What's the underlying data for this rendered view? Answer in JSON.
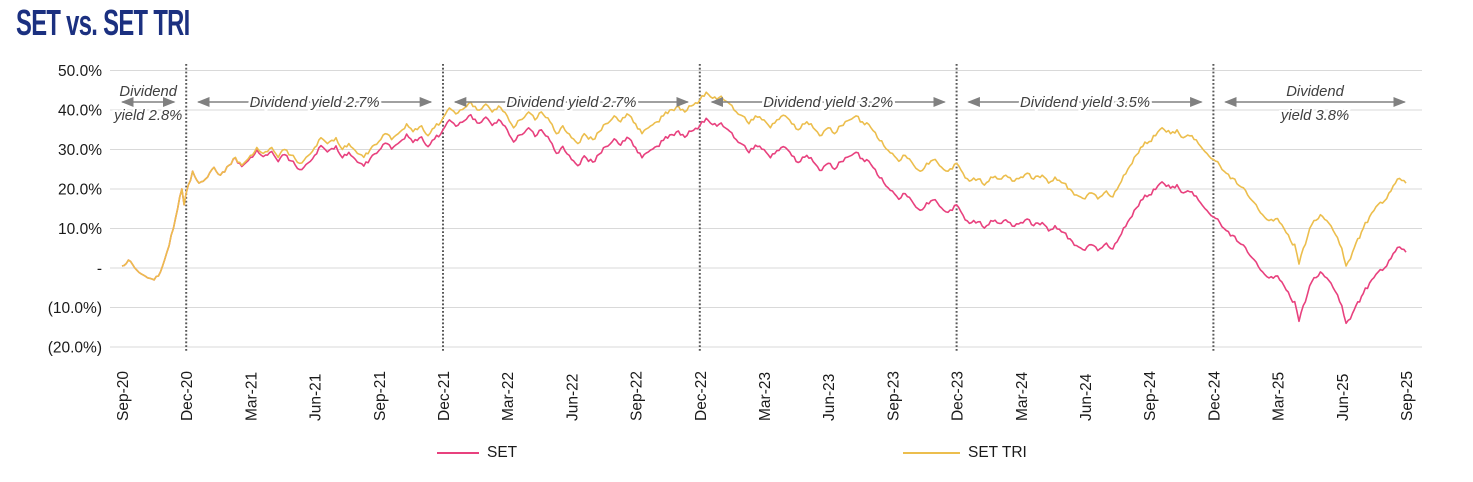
{
  "title": "SET vs. SET TRI",
  "colors": {
    "title": "#1b3080",
    "set_line": "#e8417e",
    "set_tri_line": "#ecbe4d",
    "gridline": "#d9d9d9",
    "divider": "#595959",
    "arrow": "#808080",
    "axis_text": "#1a1a1a",
    "annotation_text": "#404040",
    "background": "#ffffff"
  },
  "chart_data": {
    "type": "line",
    "title": "SET vs. SET TRI",
    "x_unit": "months since Sep-2020",
    "x_tick_months": [
      0,
      3,
      6,
      9,
      12,
      15,
      18,
      21,
      24,
      27,
      30,
      33,
      36,
      39,
      42,
      45,
      48,
      51,
      54,
      57,
      60
    ],
    "x_tick_labels": [
      "Sep-20",
      "Dec-20",
      "Mar-21",
      "Jun-21",
      "Sep-21",
      "Dec-21",
      "Mar-22",
      "Jun-22",
      "Sep-22",
      "Dec-22",
      "Mar-23",
      "Jun-23",
      "Sep-23",
      "Dec-23",
      "Mar-24",
      "Jun-24",
      "Sep-24",
      "Dec-24",
      "Mar-25",
      "Jun-25",
      "Sep-25"
    ],
    "y_tick_values": [
      50,
      40,
      30,
      20,
      10,
      0,
      -10,
      -20
    ],
    "y_tick_labels": [
      "50.0%",
      "40.0%",
      "30.0%",
      "20.0%",
      "10.0%",
      "-",
      "(10.0%)",
      "(20.0%)"
    ],
    "ylim": [
      -20,
      50
    ],
    "grid": "horizontal",
    "legend_position": "bottom",
    "dividers_at_months": [
      3,
      15,
      27,
      39,
      51
    ],
    "annotations": [
      {
        "label": "Dividend yield 2.8%",
        "lines": [
          "Dividend",
          "yield 2.8%"
        ],
        "from_month": -0.55,
        "to_month": 3
      },
      {
        "label": "Dividend yield 2.7%",
        "lines": [
          "Dividend yield 2.7%"
        ],
        "from_month": 3,
        "to_month": 15
      },
      {
        "label": "Dividend yield 2.7%",
        "lines": [
          "Dividend yield 2.7%"
        ],
        "from_month": 15,
        "to_month": 27
      },
      {
        "label": "Dividend yield 3.2%",
        "lines": [
          "Dividend yield 3.2%"
        ],
        "from_month": 27,
        "to_month": 39
      },
      {
        "label": "Dividend yield 3.5%",
        "lines": [
          "Dividend yield 3.5%"
        ],
        "from_month": 39,
        "to_month": 51
      },
      {
        "label": "Dividend yield 3.8%",
        "lines": [
          "Dividend",
          "yield 3.8%"
        ],
        "from_month": 51,
        "to_month": 60.5
      }
    ],
    "x_months": [
      0,
      0.3,
      0.6,
      0.9,
      1.2,
      1.5,
      1.8,
      2.1,
      2.4,
      2.6,
      2.8,
      2.9,
      3,
      3.3,
      3.6,
      4,
      4.3,
      4.6,
      5,
      5.3,
      5.6,
      6,
      6.3,
      6.6,
      7,
      7.3,
      7.6,
      8,
      8.3,
      8.6,
      9,
      9.3,
      9.6,
      10,
      10.3,
      10.6,
      11,
      11.3,
      11.6,
      12,
      12.3,
      12.6,
      13,
      13.3,
      13.6,
      14,
      14.3,
      14.6,
      15,
      15.3,
      15.6,
      16,
      16.3,
      16.6,
      17,
      17.3,
      17.6,
      18,
      18.3,
      18.6,
      19,
      19.3,
      19.6,
      20,
      20.3,
      20.6,
      21,
      21.3,
      21.6,
      22,
      22.3,
      22.6,
      23,
      23.3,
      23.6,
      24,
      24.3,
      24.6,
      25,
      25.3,
      25.6,
      26,
      26.3,
      26.6,
      27,
      27.3,
      27.6,
      28,
      28.3,
      28.6,
      29,
      29.3,
      29.6,
      30,
      30.3,
      30.6,
      31,
      31.3,
      31.6,
      32,
      32.3,
      32.6,
      33,
      33.3,
      33.6,
      34,
      34.3,
      34.6,
      35,
      35.3,
      35.6,
      36,
      36.3,
      36.6,
      37,
      37.3,
      37.6,
      38,
      38.3,
      38.6,
      39,
      39.3,
      39.6,
      40,
      40.3,
      40.6,
      41,
      41.3,
      41.6,
      42,
      42.3,
      42.6,
      43,
      43.3,
      43.6,
      44,
      44.3,
      44.6,
      45,
      45.3,
      45.6,
      46,
      46.3,
      46.6,
      47,
      47.3,
      47.6,
      48,
      48.3,
      48.6,
      49,
      49.3,
      49.6,
      50,
      50.3,
      50.6,
      51,
      51.3,
      51.6,
      52,
      52.3,
      52.6,
      53,
      53.3,
      53.6,
      54,
      54.3,
      54.6,
      54.8,
      55,
      55.2,
      55.4,
      55.6,
      56,
      56.3,
      56.6,
      57,
      57.2,
      57.5,
      58,
      58.3,
      58.6,
      59,
      59.3,
      59.6,
      60
    ],
    "series": [
      {
        "name": "SET",
        "color": "#e8417e",
        "values": [
          0.5,
          2,
          0,
          -1.5,
          -2.5,
          -3,
          -1,
          4,
          10,
          15,
          20,
          16,
          19,
          24.5,
          21.5,
          23,
          25.5,
          23.5,
          26,
          27.9,
          25.7,
          28,
          29.9,
          28.2,
          29.5,
          26.9,
          28.7,
          27,
          24.9,
          26.2,
          28.5,
          31,
          29.4,
          30.9,
          27.9,
          29.3,
          26.8,
          25.8,
          27.7,
          29.7,
          31.6,
          30.1,
          32,
          33.9,
          31.8,
          33.2,
          30.7,
          32.6,
          35,
          37.5,
          35.9,
          37.3,
          38.8,
          36.7,
          38.2,
          36.1,
          37.6,
          35,
          31.9,
          33.7,
          35.5,
          33.3,
          35,
          32.2,
          29,
          30.8,
          27.5,
          25.9,
          28.4,
          26.8,
          28.8,
          30.7,
          32.7,
          31.1,
          33.1,
          30.5,
          27.9,
          29.4,
          30.8,
          32.3,
          33.7,
          34.7,
          33.1,
          34.6,
          36,
          37.9,
          36.3,
          36.7,
          35.1,
          33,
          31.3,
          29.2,
          31.1,
          30,
          27.9,
          29.7,
          30.5,
          28.4,
          26.7,
          28.5,
          26.9,
          24.7,
          26.5,
          25,
          26.9,
          28.3,
          29.3,
          27.7,
          26.2,
          23.6,
          21.6,
          19.5,
          17.4,
          18.8,
          16.2,
          14.6,
          16.5,
          17.3,
          15.2,
          14.1,
          16,
          13.4,
          11.3,
          11.7,
          10.1,
          12,
          11.3,
          12.2,
          10.6,
          11.5,
          12.4,
          10.7,
          11.5,
          9.4,
          10.7,
          9,
          7.4,
          5.7,
          4.5,
          5.9,
          4.4,
          6.3,
          4.8,
          7.7,
          11.7,
          14.6,
          17.1,
          18.5,
          19.9,
          21.8,
          20.2,
          21.1,
          19,
          19.3,
          17.2,
          15.1,
          13,
          11.5,
          9.5,
          8,
          6,
          4,
          1.5,
          -1,
          -2.5,
          -2,
          -4.5,
          -7.5,
          -8.5,
          -13.5,
          -9.5,
          -6.5,
          -3.5,
          -1,
          -2.5,
          -5,
          -9.5,
          -14,
          -11.5,
          -6.5,
          -3.8,
          -1.6,
          0,
          2.4,
          5.2,
          4
        ]
      },
      {
        "name": "SET TRI",
        "color": "#ecbe4d",
        "values": [
          0.5,
          2,
          0,
          -1.5,
          -2.5,
          -3,
          -1,
          4,
          10,
          15,
          20,
          16,
          19,
          24.5,
          21.5,
          23,
          25.5,
          23.5,
          26,
          28,
          26,
          28.5,
          30.5,
          29,
          30.5,
          28,
          30,
          28.5,
          26.5,
          28,
          30.5,
          33,
          31.5,
          33,
          30,
          31.5,
          29,
          28,
          30,
          32,
          34,
          32.5,
          34.5,
          36.5,
          34.5,
          36,
          33.5,
          35.5,
          38,
          40.5,
          39,
          40.5,
          42,
          40,
          41.5,
          39.5,
          41,
          38.5,
          35.5,
          37.5,
          39.5,
          37.5,
          39.5,
          37,
          34,
          36,
          33,
          31.5,
          34,
          32.5,
          34.5,
          36.5,
          38.5,
          37,
          39,
          36.5,
          34,
          35.5,
          37,
          38.5,
          40,
          41,
          39.5,
          41,
          42.5,
          44.5,
          43,
          43.5,
          42,
          40,
          38.5,
          36.5,
          38.5,
          37.5,
          35.5,
          37.5,
          38.5,
          36.5,
          35,
          37,
          35.5,
          33.5,
          35.5,
          34,
          36,
          37.5,
          38.5,
          37,
          35.5,
          33,
          31,
          29,
          27,
          28.5,
          26,
          24.5,
          26.5,
          27.5,
          25.5,
          24.5,
          26.5,
          24,
          22,
          22.5,
          21,
          23,
          22.5,
          23.5,
          22,
          23,
          24,
          22.5,
          23.5,
          21.5,
          23,
          21.5,
          20,
          18.5,
          17.5,
          19,
          17.5,
          19.5,
          18,
          21,
          25,
          28,
          30.5,
          32,
          33.5,
          35.5,
          34,
          35,
          33,
          33.5,
          31.5,
          29.5,
          27.5,
          26,
          24,
          22.5,
          20.5,
          18.5,
          16,
          13.5,
          12,
          12.5,
          10,
          7,
          6,
          1,
          5,
          8,
          11,
          13.5,
          12,
          9.5,
          5,
          0.5,
          4,
          10,
          13,
          15.5,
          17,
          19.5,
          22.5,
          21.5
        ]
      }
    ]
  },
  "legend": {
    "items": [
      {
        "label": "SET"
      },
      {
        "label": "SET TRI"
      }
    ]
  }
}
